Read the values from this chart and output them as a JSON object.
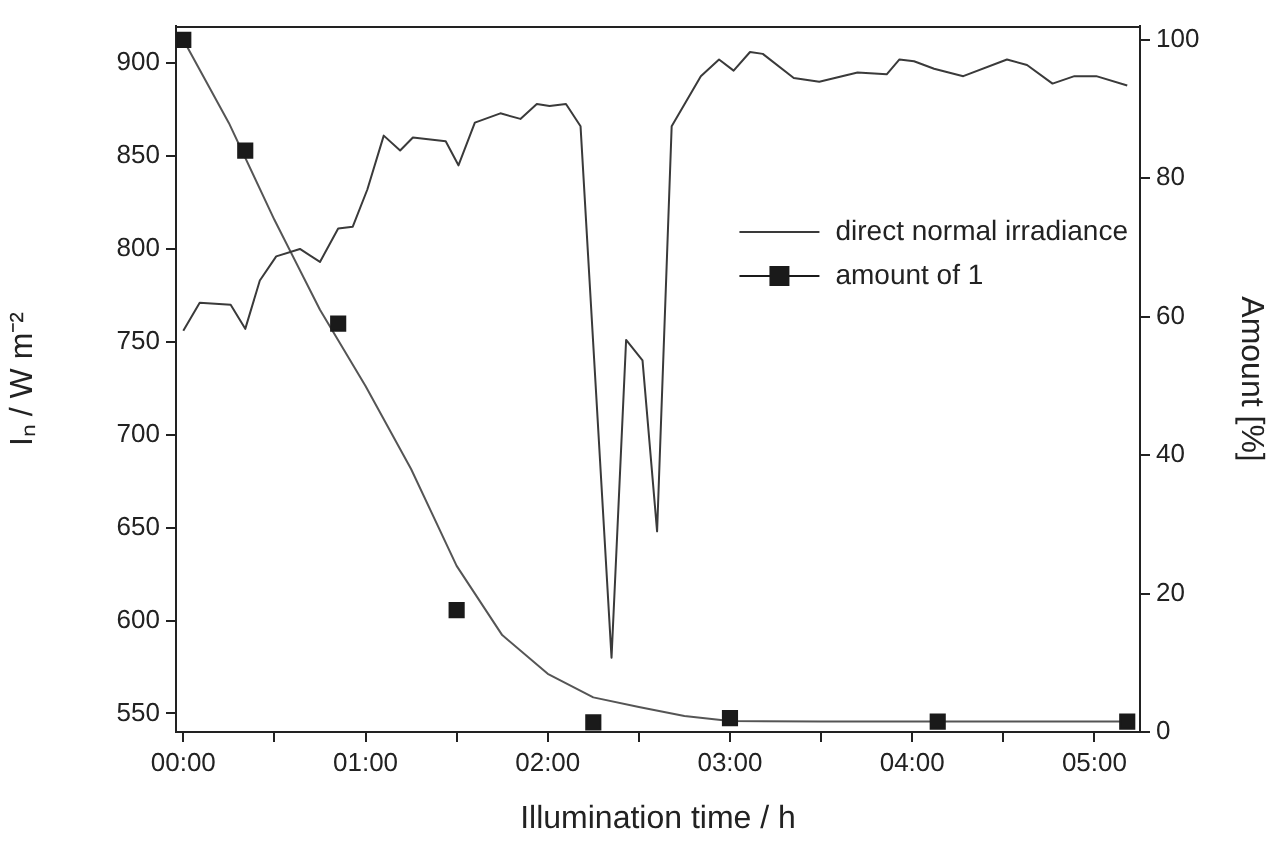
{
  "chart_data": {
    "type": "line",
    "xlabel": "Illumination time / h",
    "ylabel": "Iₙ / W m⁻²",
    "y2label": "Amount [%]",
    "xlim": [
      -0.04,
      5.25
    ],
    "xticks": [
      {
        "value": 0,
        "label": "00:00"
      },
      {
        "value": 0.5,
        "label": null
      },
      {
        "value": 1,
        "label": "01:00"
      },
      {
        "value": 1.5,
        "label": null
      },
      {
        "value": 2,
        "label": "02:00"
      },
      {
        "value": 2.5,
        "label": null
      },
      {
        "value": 3,
        "label": "03:00"
      },
      {
        "value": 3.5,
        "label": null
      },
      {
        "value": 4,
        "label": "04:00"
      },
      {
        "value": 4.5,
        "label": null
      },
      {
        "value": 5,
        "label": "05:00"
      }
    ],
    "ylim": [
      540,
      920
    ],
    "yticks": [
      550,
      600,
      650,
      700,
      750,
      800,
      850,
      900
    ],
    "y2lim": [
      0,
      102
    ],
    "y2ticks": [
      0,
      20,
      40,
      60,
      80,
      100
    ],
    "grid": false,
    "legend": "top right",
    "series": [
      {
        "name": "direct normal irradiance",
        "type": "line",
        "color": "#3a3a3a",
        "marker": "none",
        "x": [
          0,
          0.09,
          0.26,
          0.34,
          0.42,
          0.51,
          0.64,
          0.75,
          0.85,
          0.93,
          1.01,
          1.1,
          1.19,
          1.26,
          1.44,
          1.51,
          1.6,
          1.74,
          1.85,
          1.94,
          2.01,
          2.1,
          2.18,
          2.35,
          2.43,
          2.52,
          2.6,
          2.68,
          2.84,
          2.94,
          3.02,
          3.11,
          3.18,
          3.35,
          3.49,
          3.7,
          3.86,
          3.93,
          4.01,
          4.12,
          4.28,
          4.52,
          4.63,
          4.77,
          4.89,
          5.01,
          5.18
        ],
        "values": [
          756,
          771,
          770,
          757,
          783,
          796,
          800,
          793,
          811,
          812,
          832,
          861,
          853,
          860,
          858,
          845,
          868,
          873,
          870,
          878,
          877,
          878,
          866,
          580,
          751,
          740,
          648,
          866,
          893,
          902,
          896,
          906,
          905,
          892,
          890,
          895,
          894,
          902,
          901,
          897,
          893,
          902,
          899,
          889,
          893,
          893,
          888
        ]
      },
      {
        "name": "amount of 1",
        "type": "scatter",
        "axis": "y2",
        "color": "#1a1a1a",
        "marker": "square",
        "x": [
          0,
          0.34,
          0.85,
          1.5,
          2.25,
          3.0,
          4.14,
          5.18
        ],
        "values": [
          100,
          84,
          59,
          17.6,
          1.4,
          2,
          1.5,
          1.5
        ]
      },
      {
        "type": "line",
        "axis": "y2",
        "color": "#555555",
        "marker": "none",
        "x": [
          0,
          0.25,
          0.5,
          0.75,
          1.0,
          1.25,
          1.5,
          1.75,
          2.0,
          2.25,
          2.5,
          2.75,
          3.0,
          3.5,
          4.0,
          4.5,
          5.18
        ],
        "values": [
          100,
          88,
          74,
          61,
          50,
          38,
          24,
          14,
          8.4,
          5,
          3.6,
          2.3,
          1.6,
          1.5,
          1.5,
          1.5,
          1.5
        ]
      }
    ]
  }
}
